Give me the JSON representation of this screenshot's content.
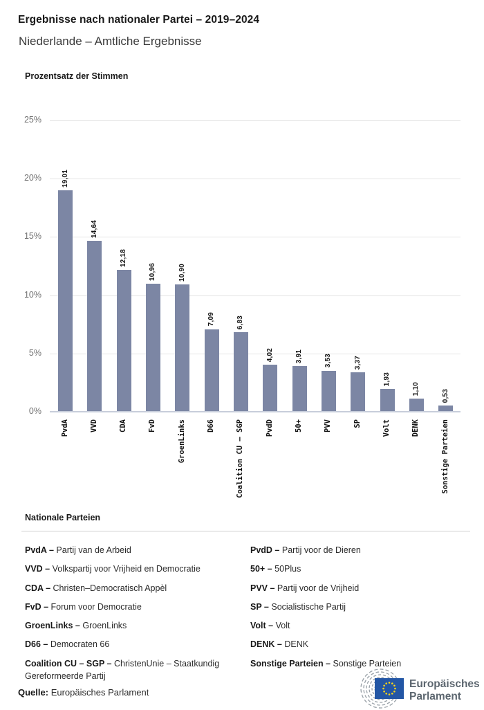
{
  "header": {
    "title": "Ergebnisse nach nationaler Partei – 2019–2024",
    "subtitle": "Niederlande – Amtliche Ergebnisse"
  },
  "chart_data": {
    "type": "bar",
    "title": "Prozentsatz der Stimmen",
    "categories": [
      "PvdA",
      "VVD",
      "CDA",
      "FvD",
      "GroenLinks",
      "D66",
      "Coalition CU – SGP",
      "PvdD",
      "50+",
      "PVV",
      "SP",
      "Volt",
      "DENK",
      "Sonstige Parteien"
    ],
    "values": [
      19.01,
      14.64,
      12.18,
      10.96,
      10.9,
      7.09,
      6.83,
      4.02,
      3.91,
      3.53,
      3.37,
      1.93,
      1.1,
      0.53
    ],
    "value_labels": [
      "19,01",
      "14,64",
      "12,18",
      "10,96",
      "10,90",
      "7,09",
      "6,83",
      "4,02",
      "3,91",
      "3,53",
      "3,37",
      "1,93",
      "1,10",
      "0,53"
    ],
    "xlabel": "",
    "ylabel": "Prozentsatz der Stimmen",
    "ylim": [
      0,
      25
    ],
    "ytick_step": 5,
    "yticks": [
      "0%",
      "5%",
      "10%",
      "15%",
      "20%",
      "25%"
    ],
    "grid": true,
    "legend_position": "none",
    "bar_color": "#7c86a4",
    "baseline_color": "#c7cdda",
    "xlabel_rotation_deg": 90,
    "value_label_rotation_deg": 90
  },
  "legend": {
    "heading": "Nationale Parteien",
    "left": [
      {
        "abbr": "PvdA –",
        "name": "Partij van de Arbeid"
      },
      {
        "abbr": "VVD –",
        "name": "Volkspartij voor Vrijheid en Democratie"
      },
      {
        "abbr": "CDA –",
        "name": "Christen–Democratisch Appèl"
      },
      {
        "abbr": "FvD –",
        "name": "Forum voor Democratie"
      },
      {
        "abbr": "GroenLinks –",
        "name": "GroenLinks"
      },
      {
        "abbr": "D66 –",
        "name": "Democraten 66"
      },
      {
        "abbr": "Coalition CU – SGP –",
        "name": "ChristenUnie – Staatkundig Gereformeerde Partij"
      }
    ],
    "right": [
      {
        "abbr": "PvdD –",
        "name": "Partij voor de Dieren"
      },
      {
        "abbr": "50+ –",
        "name": "50Plus"
      },
      {
        "abbr": "PVV –",
        "name": "Partij voor de Vrijheid"
      },
      {
        "abbr": "SP –",
        "name": "Socialistische Partij"
      },
      {
        "abbr": "Volt –",
        "name": "Volt"
      },
      {
        "abbr": "DENK –",
        "name": "DENK"
      },
      {
        "abbr": "Sonstige Parteien –",
        "name": "Sonstige Parteien"
      }
    ]
  },
  "footer": {
    "source_label": "Quelle:",
    "source_text": "Europäisches Parlament",
    "logo_line1": "Europäisches",
    "logo_line2": "Parlament",
    "logo_text_color": "#5c666f",
    "logo_flag_color": "#2356a5",
    "logo_star_color": "#ffd617",
    "logo_arc_color": "#98a0a7"
  }
}
